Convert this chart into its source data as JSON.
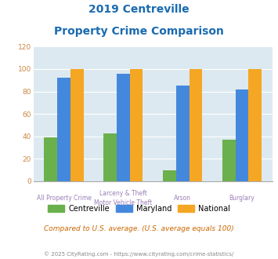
{
  "title_line1": "2019 Centreville",
  "title_line2": "Property Crime Comparison",
  "cat_labels_line1": [
    "All Property Crime",
    "Larceny & Theft",
    "Arson",
    "Burglary"
  ],
  "cat_labels_line2": [
    "",
    "Motor Vehicle Theft",
    "",
    ""
  ],
  "centreville": [
    39,
    43,
    10,
    37
  ],
  "maryland": [
    92,
    96,
    85,
    82
  ],
  "national": [
    100,
    100,
    100,
    100
  ],
  "arson_no_centreville": true,
  "colors": {
    "centreville": "#6ab04c",
    "maryland": "#4488dd",
    "national": "#f5a623"
  },
  "ylim": [
    0,
    120
  ],
  "yticks": [
    0,
    20,
    40,
    60,
    80,
    100,
    120
  ],
  "title_color": "#1a6bb0",
  "xlabel_color": "#9b7fb6",
  "ytick_color": "#cc8844",
  "background_color": "#dce9f0",
  "legend_labels": [
    "Centreville",
    "Maryland",
    "National"
  ],
  "note": "Compared to U.S. average. (U.S. average equals 100)",
  "note_color": "#cc6600",
  "footer": "© 2025 CityRating.com - https://www.cityrating.com/crime-statistics/",
  "footer_color": "#888888"
}
